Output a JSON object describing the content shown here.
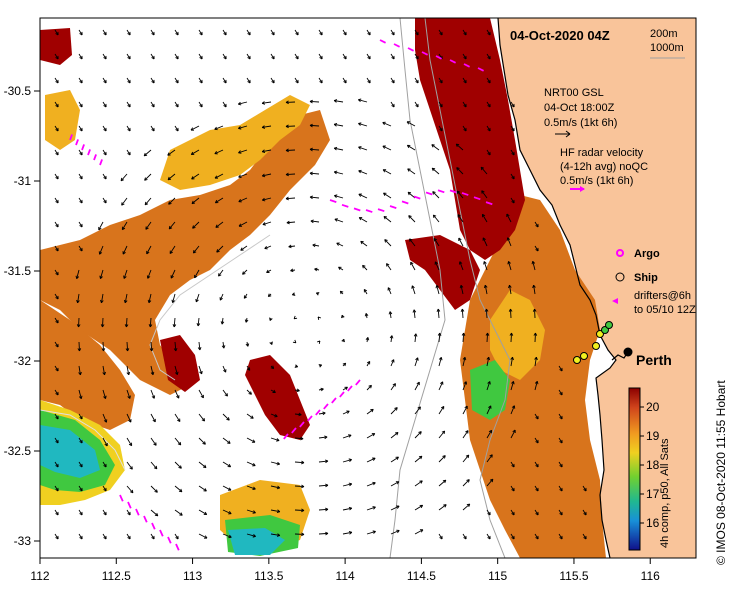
{
  "title": "04-Oct-2020 04Z",
  "depth_legend": {
    "line1": "200m",
    "line2": "1000m"
  },
  "current_legend": {
    "source": "NRT00 GSL",
    "time": "04-Oct 18:00Z",
    "scale": "0.5m/s (1kt 6h)"
  },
  "hf_legend": {
    "title": "HF radar velocity",
    "subtitle": "(4-12h avg) noQC",
    "scale": "0.5m/s (1kt 6h)"
  },
  "markers": {
    "argo_label": "Argo",
    "ship_label": "Ship",
    "drifters_line1": "drifters@6h",
    "drifters_line2": "to 05/10 12Z"
  },
  "city_label": "Perth",
  "colorbar": {
    "ticks": [
      "20",
      "19",
      "18",
      "17",
      "16"
    ],
    "caption": "4h comp, p50, All Sats"
  },
  "credit": "© IMOS 08-Oct-2020 11:55 Hobart",
  "x_ticks": [
    "112",
    "112.5",
    "113",
    "113.5",
    "114",
    "114.5",
    "115",
    "115.5",
    "116"
  ],
  "y_ticks": [
    "-30.5",
    "-31",
    "-31.5",
    "-32",
    "-32.5",
    "-33"
  ],
  "colors": {
    "land": "#f9c49a",
    "sst_dark": "#a00000",
    "sst_orange": "#d8741c",
    "sst_yellow": "#f0b020",
    "sst_green": "#40c840",
    "sst_cyan": "#20b8c0",
    "hf_arrow": "#ff00ff"
  }
}
